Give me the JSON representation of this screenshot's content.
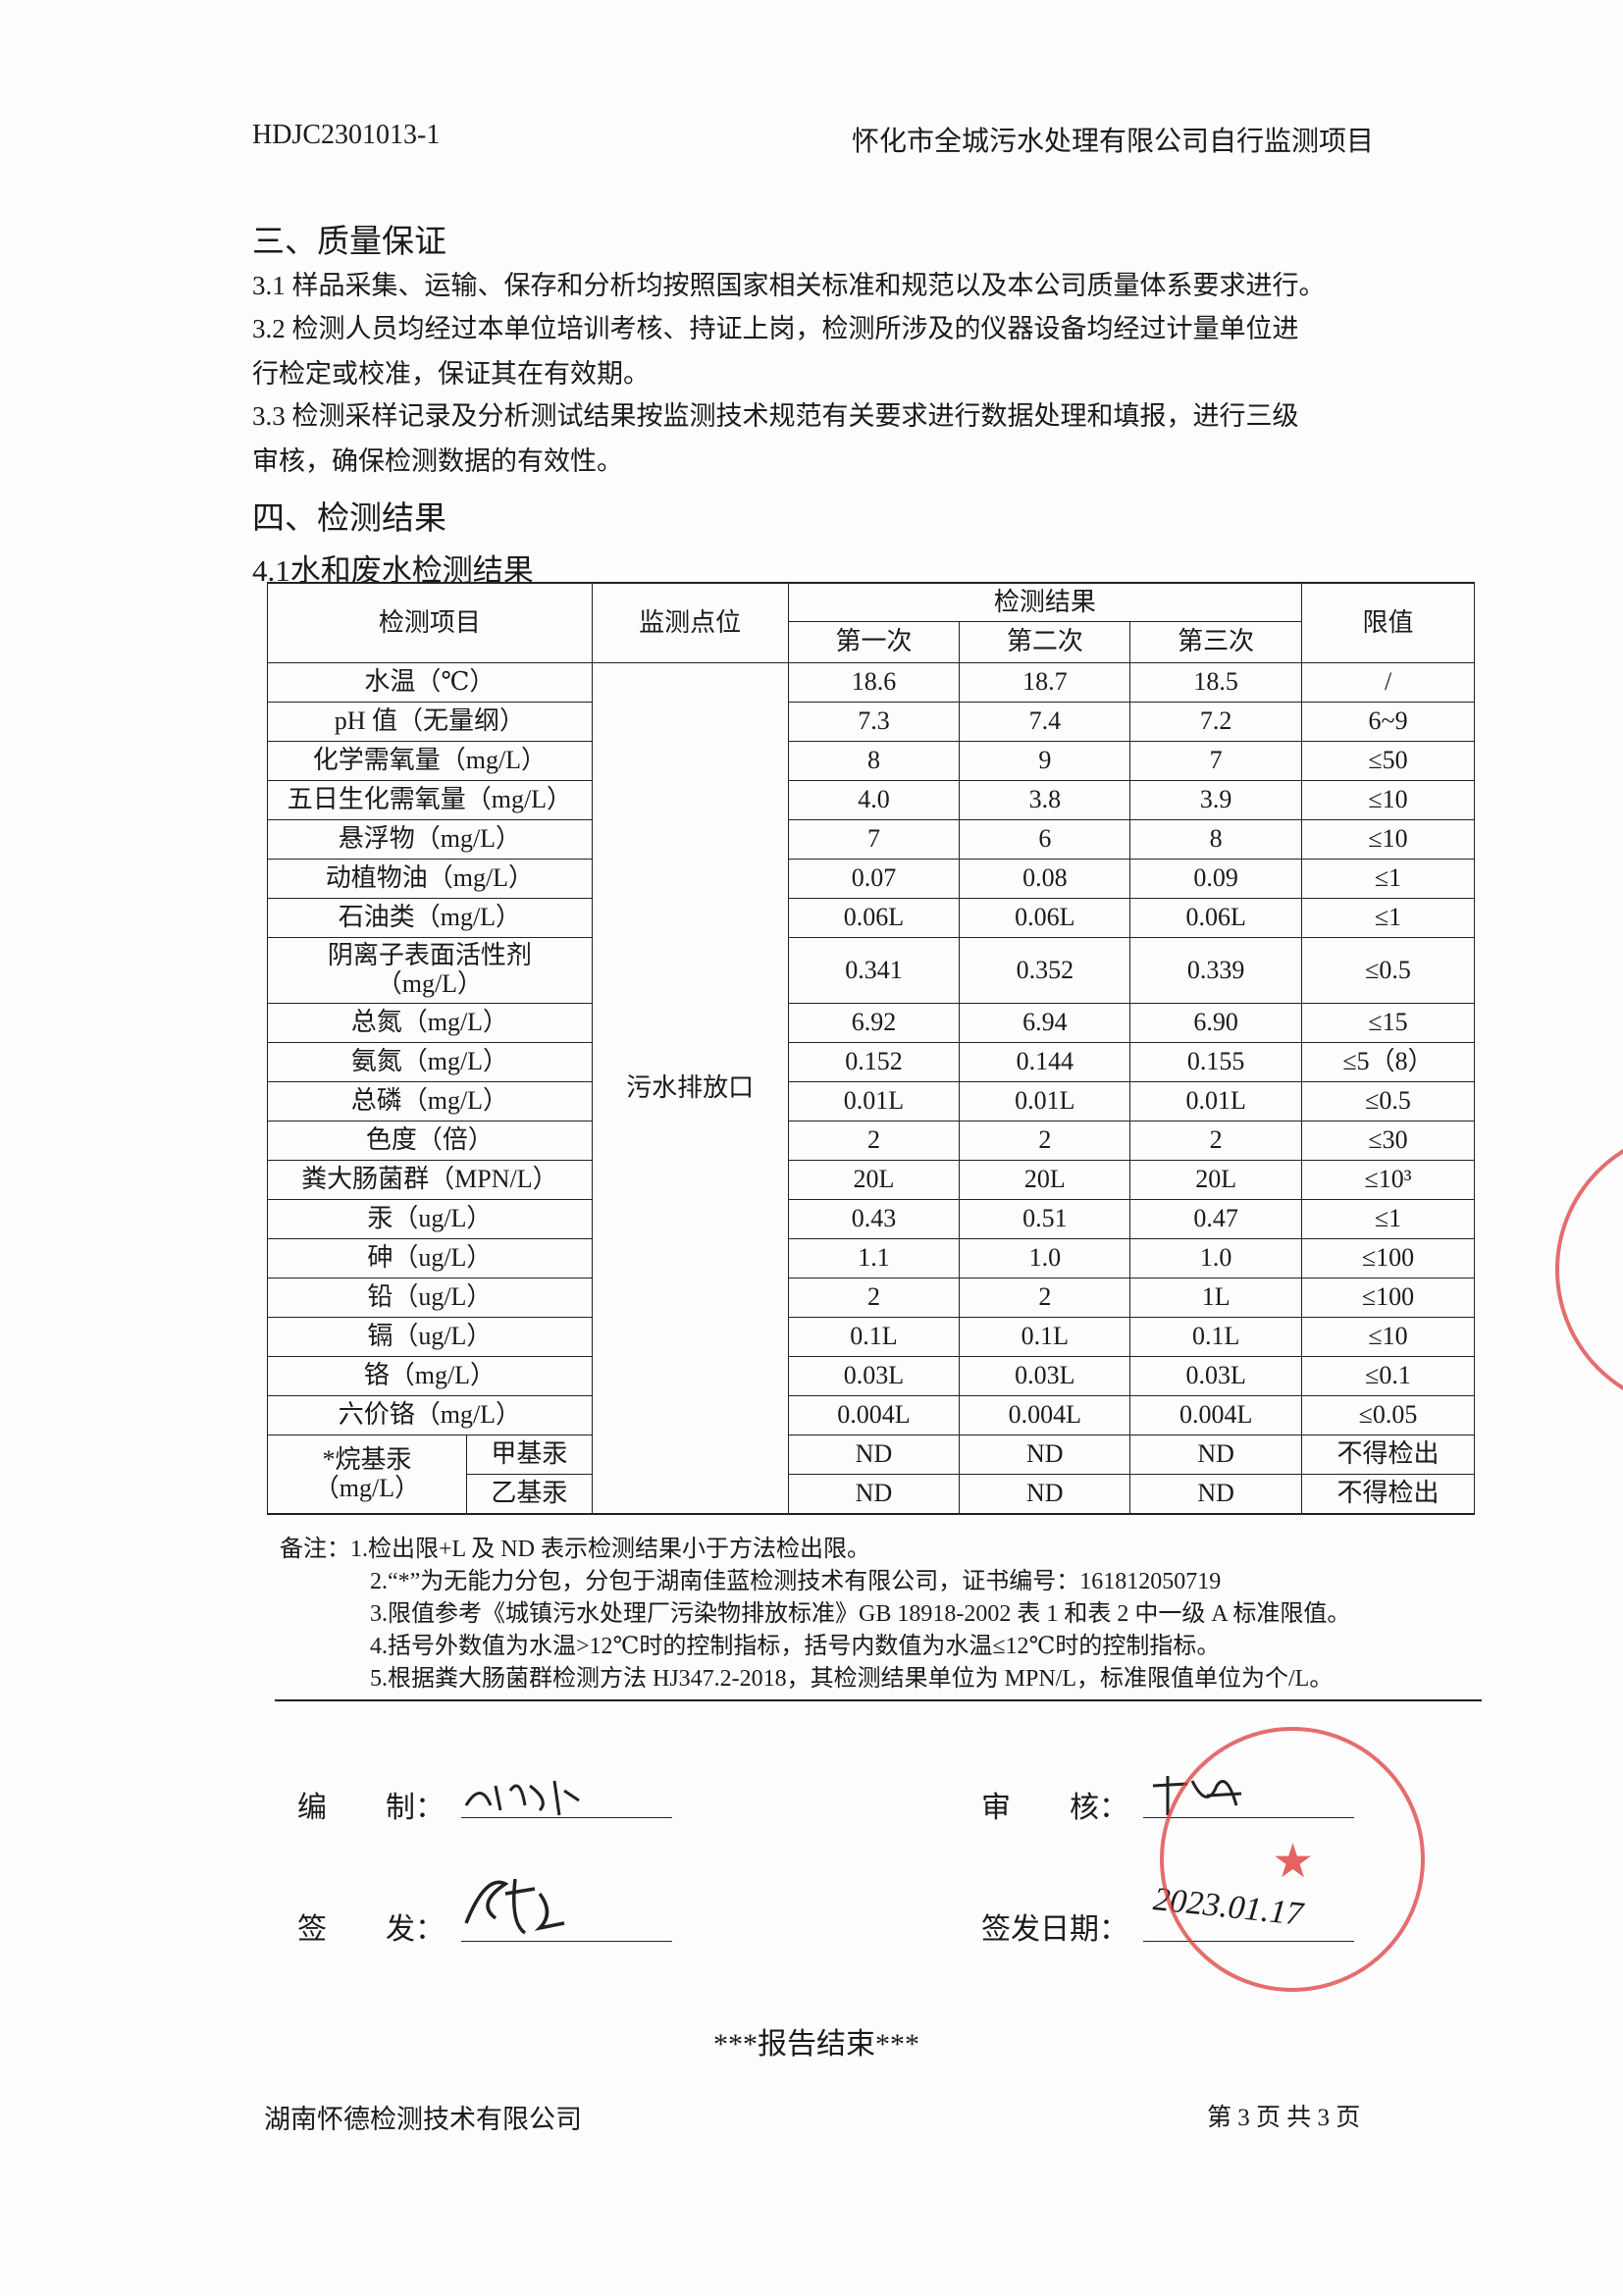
{
  "header": {
    "report_no": "HDJC2301013-1",
    "project": "怀化市全城污水处理有限公司自行监测项目"
  },
  "section3": {
    "title": "三、质量保证",
    "lines": [
      "3.1  样品采集、运输、保存和分析均按照国家相关标准和规范以及本公司质量体系要求进行。",
      "3.2  检测人员均经过本单位培训考核、持证上岗，检测所涉及的仪器设备均经过计量单位进",
      "行检定或校准，保证其在有效期。",
      "3.3  检测采样记录及分析测试结果按监测技术规范有关要求进行数据处理和填报，进行三级",
      "审核，确保检测数据的有效性。"
    ]
  },
  "section4": {
    "title": "四、检测结果",
    "subtitle": "4.1水和废水检测结果"
  },
  "table": {
    "headers": {
      "item": "检测项目",
      "point": "监测点位",
      "results": "检测结果",
      "first": "第一次",
      "second": "第二次",
      "third": "第三次",
      "limit": "限值"
    },
    "point": "污水排放口",
    "rows": [
      {
        "item": "水温（℃）",
        "v": [
          "18.6",
          "18.7",
          "18.5"
        ],
        "limit": "/"
      },
      {
        "item": "pH 值（无量纲）",
        "v": [
          "7.3",
          "7.4",
          "7.2"
        ],
        "limit": "6~9"
      },
      {
        "item": "化学需氧量（mg/L）",
        "v": [
          "8",
          "9",
          "7"
        ],
        "limit": "≤50"
      },
      {
        "item": "五日生化需氧量（mg/L）",
        "v": [
          "4.0",
          "3.8",
          "3.9"
        ],
        "limit": "≤10"
      },
      {
        "item": "悬浮物（mg/L）",
        "v": [
          "7",
          "6",
          "8"
        ],
        "limit": "≤10"
      },
      {
        "item": "动植物油（mg/L）",
        "v": [
          "0.07",
          "0.08",
          "0.09"
        ],
        "limit": "≤1"
      },
      {
        "item": "石油类（mg/L）",
        "v": [
          "0.06L",
          "0.06L",
          "0.06L"
        ],
        "limit": "≤1"
      },
      {
        "item": "阴离子表面活性剂（mg/L）",
        "v": [
          "0.341",
          "0.352",
          "0.339"
        ],
        "limit": "≤0.5"
      },
      {
        "item": "总氮（mg/L）",
        "v": [
          "6.92",
          "6.94",
          "6.90"
        ],
        "limit": "≤15"
      },
      {
        "item": "氨氮（mg/L）",
        "v": [
          "0.152",
          "0.144",
          "0.155"
        ],
        "limit": "≤5（8）"
      },
      {
        "item": "总磷（mg/L）",
        "v": [
          "0.01L",
          "0.01L",
          "0.01L"
        ],
        "limit": "≤0.5"
      },
      {
        "item": "色度（倍）",
        "v": [
          "2",
          "2",
          "2"
        ],
        "limit": "≤30"
      },
      {
        "item": "粪大肠菌群（MPN/L）",
        "v": [
          "20L",
          "20L",
          "20L"
        ],
        "limit": "≤10³"
      },
      {
        "item": "汞（ug/L）",
        "v": [
          "0.43",
          "0.51",
          "0.47"
        ],
        "limit": "≤1"
      },
      {
        "item": "砷（ug/L）",
        "v": [
          "1.1",
          "1.0",
          "1.0"
        ],
        "limit": "≤100"
      },
      {
        "item": "铅（ug/L）",
        "v": [
          "2",
          "2",
          "1L"
        ],
        "limit": "≤100"
      },
      {
        "item": "镉（ug/L）",
        "v": [
          "0.1L",
          "0.1L",
          "0.1L"
        ],
        "limit": "≤10"
      },
      {
        "item": "铬（mg/L）",
        "v": [
          "0.03L",
          "0.03L",
          "0.03L"
        ],
        "limit": "≤0.1"
      },
      {
        "item": "六价铬（mg/L）",
        "v": [
          "0.004L",
          "0.004L",
          "0.004L"
        ],
        "limit": "≤0.05"
      }
    ],
    "alkyl": {
      "group": "*烷基汞（mg/L）",
      "rows": [
        {
          "item": "甲基汞",
          "v": [
            "ND",
            "ND",
            "ND"
          ],
          "limit": "不得检出"
        },
        {
          "item": "乙基汞",
          "v": [
            "ND",
            "ND",
            "ND"
          ],
          "limit": "不得检出"
        }
      ]
    }
  },
  "notes": [
    "备注：1.检出限+L 及 ND 表示检测结果小于方法检出限。",
    "2.“*”为无能力分包，分包于湖南佳蓝检测技术有限公司，证书编号：161812050719",
    "3.限值参考《城镇污水处理厂污染物排放标准》GB 18918-2002 表 1 和表 2 中一级 A 标准限值。",
    "4.括号外数值为水温>12℃时的控制指标，括号内数值为水温≤12℃时的控制指标。",
    "5.根据粪大肠菌群检测方法 HJ347.2-2018，其检测结果单位为 MPN/L，标准限值单位为个/L。"
  ],
  "signatures": {
    "compiled": "编　　制：",
    "reviewed": "审　　核：",
    "issued": "签　　发：",
    "issue_date": "签发日期：",
    "date_handwritten": "2023.01.17"
  },
  "end": "***报告结束***",
  "footer": {
    "company": "湖南怀德检测技术有限公司",
    "page": "第 3 页 共 3 页"
  },
  "colors": {
    "stamp": "#dc3c3c"
  }
}
